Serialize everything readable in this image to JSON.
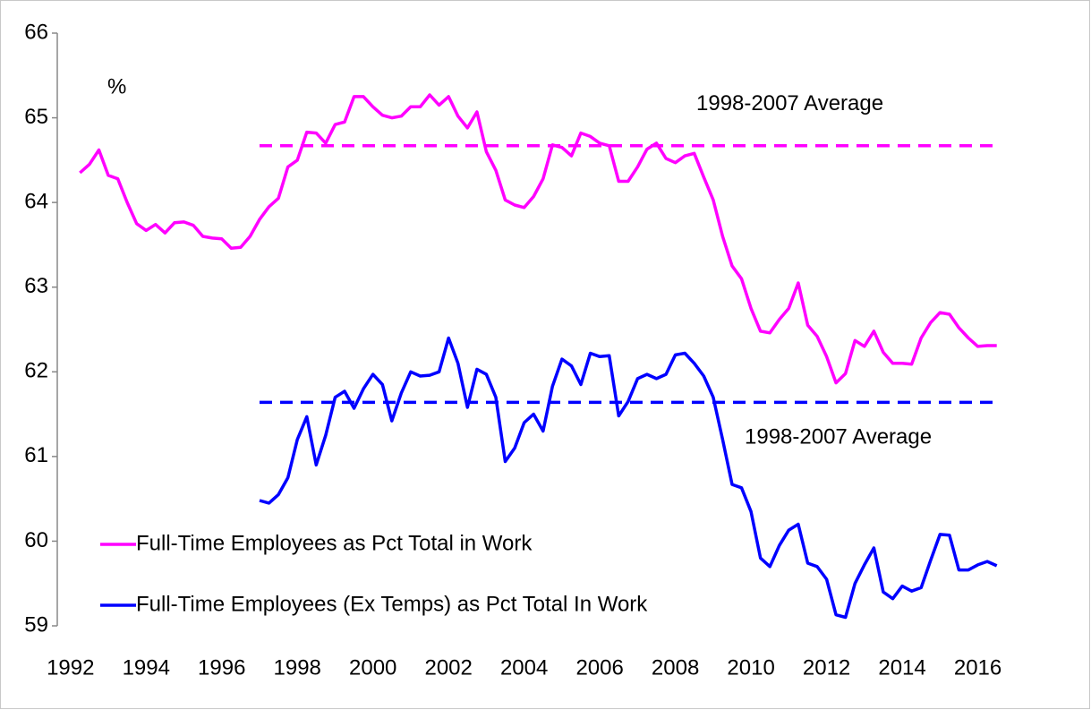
{
  "chart_data": {
    "type": "line",
    "y_label": "%",
    "xlim": [
      1991.65,
      2016.65
    ],
    "ylim": [
      59,
      66
    ],
    "yticks": [
      59,
      60,
      61,
      62,
      63,
      64,
      65,
      66
    ],
    "xticks": [
      1992,
      1994,
      1996,
      1998,
      2000,
      2002,
      2004,
      2006,
      2008,
      2010,
      2012,
      2014,
      2016
    ],
    "legend": "lower left",
    "series": [
      {
        "name": "Full-Time Employees as Pct Total in Work",
        "color": "#ff00ff",
        "x": [
          1992.25,
          1992.5,
          1992.75,
          1993,
          1993.25,
          1993.5,
          1993.75,
          1994,
          1994.25,
          1994.5,
          1994.75,
          1995,
          1995.25,
          1995.5,
          1995.75,
          1996,
          1996.25,
          1996.5,
          1996.75,
          1997,
          1997.25,
          1997.5,
          1997.75,
          1998,
          1998.25,
          1998.5,
          1998.75,
          1999,
          1999.25,
          1999.5,
          1999.75,
          2000,
          2000.25,
          2000.5,
          2000.75,
          2001,
          2001.25,
          2001.5,
          2001.75,
          2002,
          2002.25,
          2002.5,
          2002.75,
          2003,
          2003.25,
          2003.5,
          2003.75,
          2004,
          2004.25,
          2004.5,
          2004.75,
          2005,
          2005.25,
          2005.5,
          2005.75,
          2006,
          2006.25,
          2006.5,
          2006.75,
          2007,
          2007.25,
          2007.5,
          2007.75,
          2008,
          2008.25,
          2008.5,
          2008.75,
          2009,
          2009.25,
          2009.5,
          2009.75,
          2010,
          2010.25,
          2010.5,
          2010.75,
          2011,
          2011.25,
          2011.5,
          2011.75,
          2012,
          2012.25,
          2012.5,
          2012.75,
          2013,
          2013.25,
          2013.5,
          2013.75,
          2014,
          2014.25,
          2014.5,
          2014.75,
          2015,
          2015.25,
          2015.5,
          2015.75,
          2016,
          2016.25,
          2016.5
        ],
        "values": [
          64.35,
          64.45,
          64.62,
          64.32,
          64.28,
          64.0,
          63.75,
          63.67,
          63.74,
          63.64,
          63.76,
          63.77,
          63.73,
          63.6,
          63.58,
          63.57,
          63.46,
          63.47,
          63.6,
          63.8,
          63.95,
          64.05,
          64.42,
          64.5,
          64.83,
          64.82,
          64.7,
          64.92,
          64.95,
          65.25,
          65.25,
          65.13,
          65.03,
          65.0,
          65.02,
          65.13,
          65.13,
          65.27,
          65.15,
          65.25,
          65.02,
          64.88,
          65.07,
          64.6,
          64.38,
          64.03,
          63.97,
          63.94,
          64.07,
          64.28,
          64.68,
          64.65,
          64.55,
          64.82,
          64.78,
          64.7,
          64.67,
          64.25,
          64.25,
          64.42,
          64.63,
          64.7,
          64.52,
          64.47,
          64.55,
          64.58,
          64.3,
          64.03,
          63.6,
          63.25,
          63.1,
          62.75,
          62.48,
          62.46,
          62.62,
          62.75,
          63.05,
          62.55,
          62.42,
          62.18,
          61.87,
          61.98,
          62.37,
          62.3,
          62.48,
          62.23,
          62.1,
          62.1,
          62.09,
          62.4,
          62.58,
          62.7,
          62.68,
          62.52,
          62.4,
          62.3,
          62.31,
          62.31
        ]
      },
      {
        "name": "Full-Time Employees (Ex Temps) as Pct Total In Work",
        "color": "#0000ff",
        "x": [
          1997,
          1997.25,
          1997.5,
          1997.75,
          1998,
          1998.25,
          1998.5,
          1998.75,
          1999,
          1999.25,
          1999.5,
          1999.75,
          2000,
          2000.25,
          2000.5,
          2000.75,
          2001,
          2001.25,
          2001.5,
          2001.75,
          2002,
          2002.25,
          2002.5,
          2002.75,
          2003,
          2003.25,
          2003.5,
          2003.75,
          2004,
          2004.25,
          2004.5,
          2004.75,
          2005,
          2005.25,
          2005.5,
          2005.75,
          2006,
          2006.25,
          2006.5,
          2006.75,
          2007,
          2007.25,
          2007.5,
          2007.75,
          2008,
          2008.25,
          2008.5,
          2008.75,
          2009,
          2009.25,
          2009.5,
          2009.75,
          2010,
          2010.25,
          2010.5,
          2010.75,
          2011,
          2011.25,
          2011.5,
          2011.75,
          2012,
          2012.25,
          2012.5,
          2012.75,
          2013,
          2013.25,
          2013.5,
          2013.75,
          2014,
          2014.25,
          2014.5,
          2014.75,
          2015,
          2015.25,
          2015.5,
          2015.75,
          2016,
          2016.25,
          2016.5
        ],
        "values": [
          60.48,
          60.45,
          60.55,
          60.75,
          61.2,
          61.47,
          60.9,
          61.25,
          61.7,
          61.77,
          61.57,
          61.8,
          61.97,
          61.85,
          61.42,
          61.75,
          62.0,
          61.95,
          61.96,
          62.0,
          62.4,
          62.1,
          61.58,
          62.03,
          61.97,
          61.7,
          60.94,
          61.1,
          61.4,
          61.5,
          61.3,
          61.83,
          62.15,
          62.07,
          61.85,
          62.22,
          62.18,
          62.19,
          61.48,
          61.65,
          61.92,
          61.97,
          61.92,
          61.97,
          62.2,
          62.22,
          62.1,
          61.95,
          61.7,
          61.2,
          60.67,
          60.63,
          60.35,
          59.8,
          59.7,
          59.95,
          60.13,
          60.2,
          59.74,
          59.7,
          59.55,
          59.13,
          59.1,
          59.5,
          59.72,
          59.92,
          59.4,
          59.32,
          59.47,
          59.41,
          59.45,
          59.77,
          60.08,
          60.07,
          59.66,
          59.66,
          59.72,
          59.76,
          59.71
        ]
      }
    ],
    "reference_lines": [
      {
        "label": "1998-2007 Average",
        "value": 64.67,
        "color": "#ff00ff",
        "x": [
          1997,
          2016.4
        ]
      },
      {
        "label": "1998-2007 Average",
        "value": 61.64,
        "color": "#0000ff",
        "x": [
          1997,
          2016.4
        ]
      }
    ]
  }
}
